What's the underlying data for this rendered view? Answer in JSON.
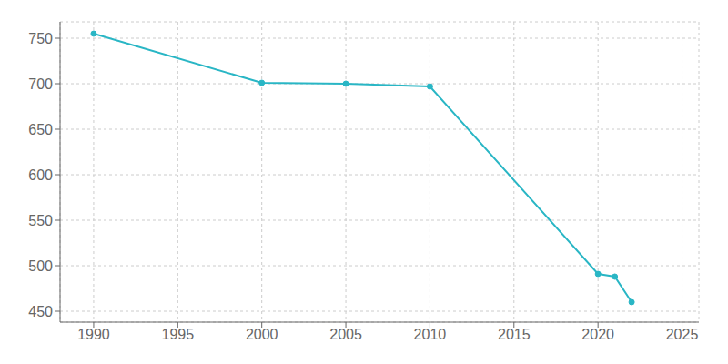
{
  "chart_data": {
    "type": "line",
    "x": [
      1990,
      2000,
      2005,
      2010,
      2020,
      2021,
      2022
    ],
    "values": [
      755,
      701,
      700,
      697,
      491,
      488,
      460
    ],
    "color": "#29b6c5",
    "marker": "circle",
    "xlim": [
      1988,
      2026
    ],
    "ylim": [
      438,
      768
    ],
    "xticks": [
      1990,
      1995,
      2000,
      2005,
      2010,
      2015,
      2020,
      2025
    ],
    "yticks": [
      450,
      500,
      550,
      600,
      650,
      700,
      750
    ],
    "grid": true
  }
}
